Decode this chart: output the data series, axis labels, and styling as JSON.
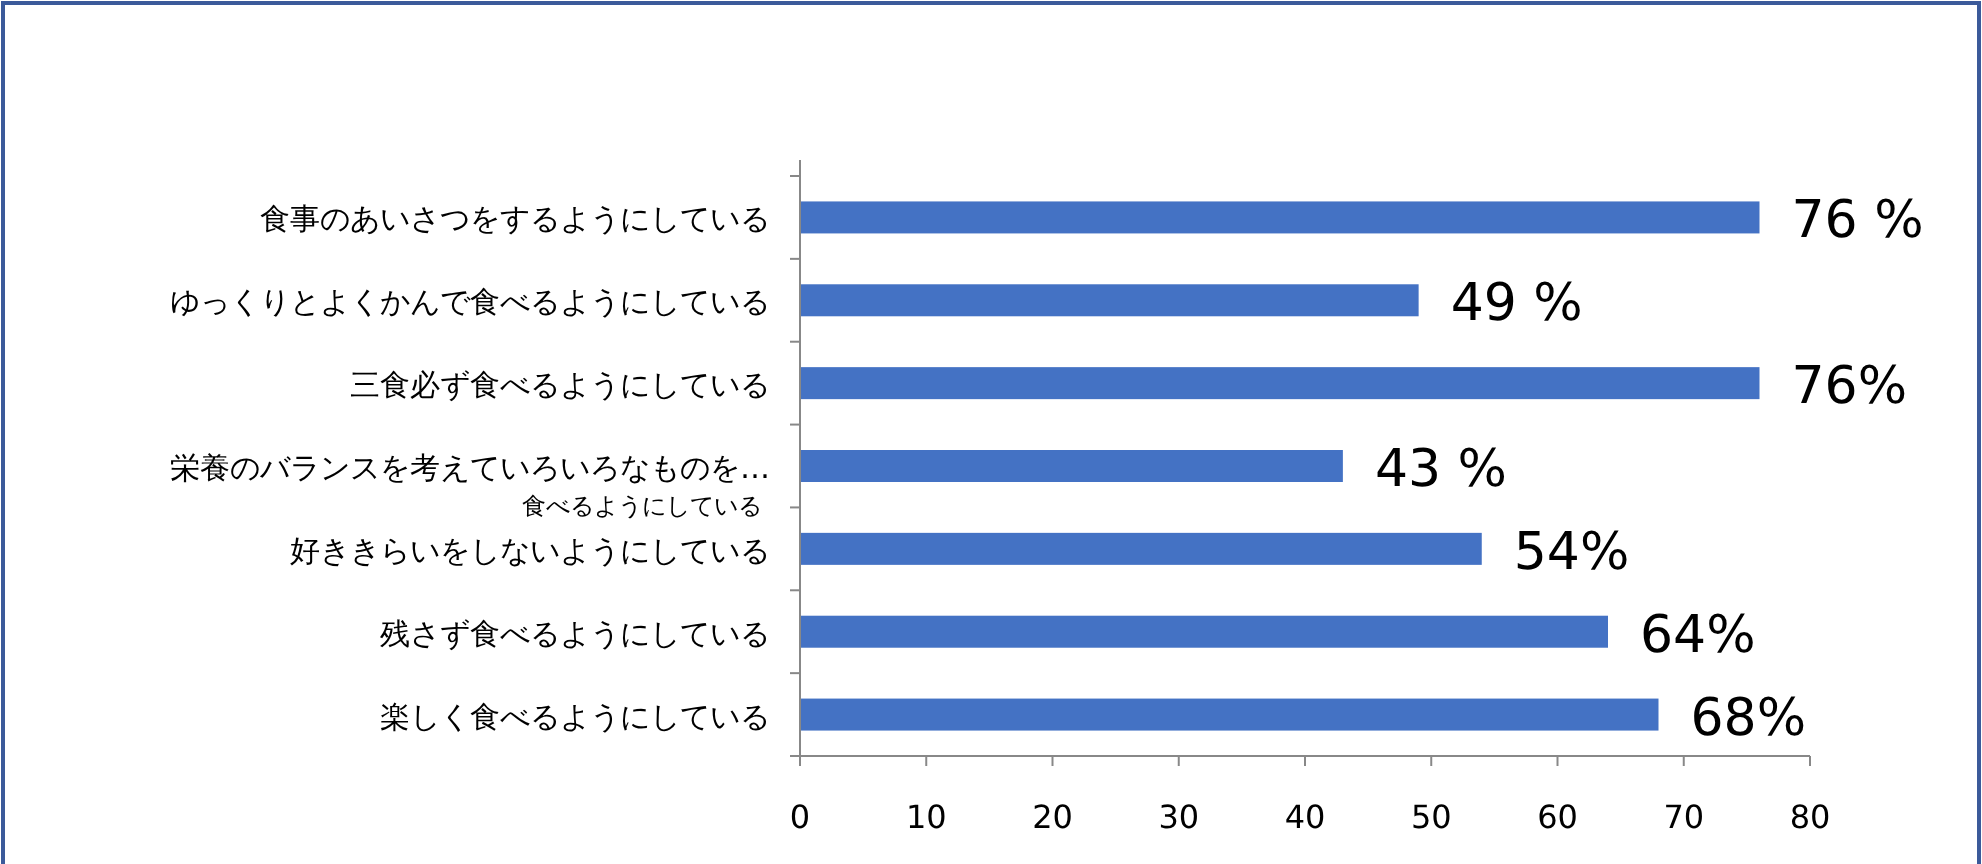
{
  "chart_data": {
    "type": "bar",
    "orientation": "horizontal",
    "categories": [
      "食事のあいさつをするようにしている",
      "ゆっくりとよくかんで食べるようにしている",
      "三食必ず食べるようにしている",
      "栄養のバランスを考えていろいろなものを…\n食べるようにしている",
      "好ききらいをしないようにしている",
      "残さず食べるようにしている",
      "楽しく食べるようにしている"
    ],
    "values": [
      76,
      49,
      76,
      43,
      54,
      64,
      68
    ],
    "value_labels": [
      "76 %",
      "49 %",
      "76%",
      "43 %",
      "54%",
      "64%",
      "68%"
    ],
    "color": "#4472c4",
    "xlim": [
      0,
      80
    ],
    "xticks": [
      0,
      10,
      20,
      30,
      40,
      50,
      60,
      70,
      80
    ],
    "grid": false
  }
}
